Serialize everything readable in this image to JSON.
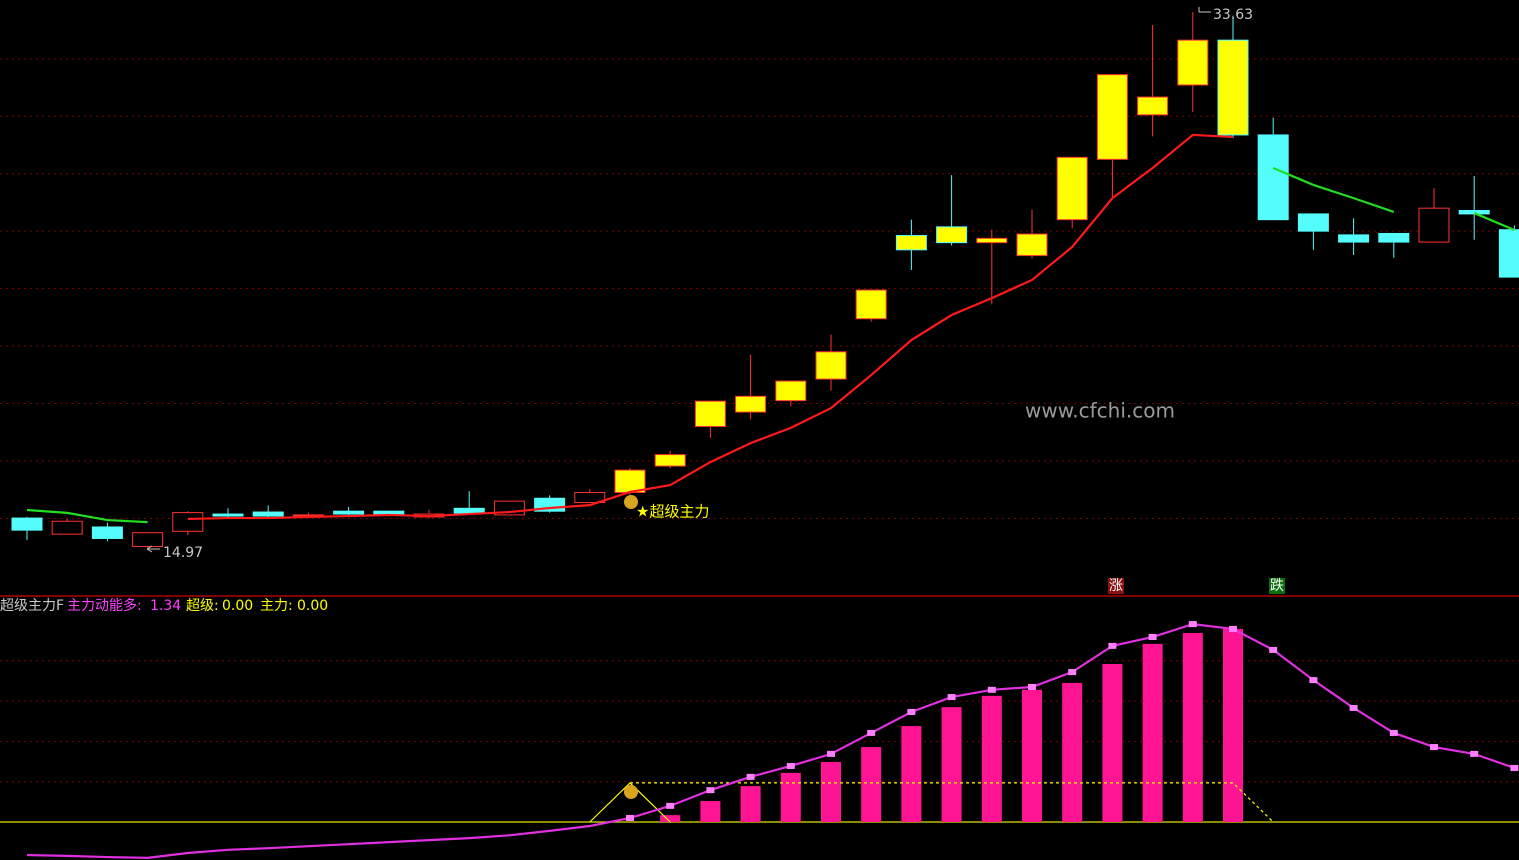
{
  "chart_data": [
    {
      "type": "candlestick",
      "ylim": [
        14,
        34
      ],
      "grid": true,
      "grid_lines": [
        16,
        18,
        20,
        22,
        24,
        26,
        28,
        30,
        32
      ],
      "up_color": "#ff3232",
      "down_color": "#54fcfc",
      "candles": {
        "open": [
          16.01,
          15.45,
          15.7,
          15.02,
          15.55,
          16.15,
          16.22,
          16.1,
          16.25,
          16.25,
          16.05,
          16.35,
          16.12,
          16.7,
          16.55,
          16.9,
          17.82,
          19.2,
          19.7,
          20.1,
          20.85,
          22.95,
          25.85,
          26.15,
          25.6,
          25.15,
          26.4,
          28.5,
          30.05,
          31.09,
          32.65,
          29.35,
          26.6,
          25.87,
          25.92,
          25.62,
          26.72,
          26.05
        ],
        "high": [
          16.05,
          15.98,
          15.85,
          15.5,
          16.25,
          16.35,
          16.45,
          16.2,
          16.4,
          16.25,
          16.3,
          16.95,
          16.6,
          16.8,
          17.02,
          17.75,
          18.35,
          20.1,
          21.7,
          20.78,
          22.4,
          23.95,
          26.4,
          27.95,
          26.05,
          26.75,
          28.57,
          31.45,
          33.18,
          33.63,
          33.5,
          29.95,
          26.6,
          26.45,
          25.92,
          27.5,
          27.92,
          26.2
        ],
        "low": [
          15.24,
          15.45,
          15.2,
          14.97,
          15.42,
          16.05,
          15.98,
          16.02,
          16.1,
          16.1,
          16.0,
          16.15,
          16.12,
          16.2,
          16.55,
          16.75,
          17.75,
          18.8,
          19.45,
          19.9,
          20.45,
          22.85,
          24.65,
          25.5,
          23.45,
          25.05,
          26.1,
          27.15,
          29.3,
          30.15,
          29.25,
          26.4,
          25.35,
          25.17,
          25.07,
          25.62,
          25.7,
          24.4
        ],
        "close": [
          15.59,
          15.9,
          15.3,
          15.5,
          16.2,
          16.08,
          16.08,
          16.12,
          16.15,
          16.15,
          16.15,
          16.18,
          16.6,
          16.25,
          16.9,
          17.68,
          18.22,
          20.08,
          20.25,
          20.78,
          21.8,
          23.95,
          25.35,
          25.6,
          25.75,
          25.9,
          28.57,
          31.45,
          30.67,
          32.65,
          29.35,
          26.4,
          26.0,
          25.62,
          25.62,
          26.8,
          26.6,
          24.4
        ],
        "fills": [
          "#54fcfc",
          "#000000",
          "#54fcfc",
          "#000000",
          "#000000",
          "#54fcfc",
          "#54fcfc",
          "#000000",
          "#54fcfc",
          "#54fcfc",
          "#000000",
          "#54fcfc",
          "#000000",
          "#54fcfc",
          "#000000",
          "#ffff00",
          "#ffff00",
          "#ffff00",
          "#ffff00",
          "#ffff00",
          "#ffff00",
          "#ffff00",
          "#ffff00",
          "#ffff00",
          "#ffff00",
          "#ffff00",
          "#ffff00",
          "#ffff00",
          "#ffff00",
          "#ffff00",
          "#ffff00",
          "#54fcfc",
          "#54fcfc",
          "#54fcfc",
          "#54fcfc",
          "#000000",
          "#54fcfc",
          "#54fcfc"
        ]
      },
      "lines": [
        {
          "color": "#ff1a1a",
          "values": [
            null,
            null,
            null,
            null,
            15.98,
            16.01,
            16.01,
            16.05,
            16.08,
            16.12,
            16.08,
            16.15,
            16.22,
            16.36,
            16.46,
            16.92,
            17.16,
            17.96,
            18.62,
            19.15,
            19.84,
            20.99,
            22.21,
            23.08,
            23.67,
            24.3,
            25.45,
            27.15,
            28.2,
            29.35,
            29.28,
            null,
            null,
            null,
            null,
            null,
            null,
            null
          ]
        },
        {
          "color": "#22dd22",
          "values": [
            16.29,
            16.19,
            15.94,
            15.87,
            null,
            null,
            null,
            null,
            null,
            null,
            null,
            null,
            null,
            null,
            null,
            null,
            null,
            null,
            null,
            null,
            null,
            null,
            null,
            null,
            null,
            null,
            null,
            null,
            null,
            null,
            null,
            28.2,
            27.61,
            27.15,
            26.67,
            null,
            26.63,
            26.04
          ]
        }
      ],
      "annotation": "★超级主力",
      "watermark": "www.cfchi.com",
      "signals": [
        "涨",
        "跌"
      ]
    },
    {
      "type": "indicator",
      "title": "超级主力F",
      "ylim": [
        -1,
        5.6
      ],
      "grid": true,
      "grid_lines": [
        1,
        2,
        3,
        4
      ],
      "baseline_color": "#e0e000",
      "legend": [
        {
          "name": "主力动能多:",
          "value": 1.34,
          "color": "#ff40ff"
        },
        {
          "name": "超级:",
          "value": 0,
          "value_label": "0.00",
          "color": "#ffff00"
        },
        {
          "name": "主力:",
          "value": 0,
          "value_label": "0.00",
          "color": "#ffff00"
        }
      ],
      "bars": {
        "color": "#ff1493",
        "values": [
          null,
          null,
          null,
          null,
          null,
          null,
          null,
          null,
          null,
          null,
          null,
          null,
          null,
          null,
          null,
          null,
          0.17,
          0.52,
          0.89,
          1.22,
          1.49,
          1.86,
          2.38,
          2.85,
          3.13,
          3.28,
          3.45,
          3.92,
          4.42,
          4.69,
          4.79,
          null,
          null,
          null,
          null,
          null,
          null,
          null
        ]
      },
      "line": {
        "color": "#e030e0",
        "marker_color": "#ff80ff",
        "values": [
          -0.82,
          -0.84,
          -0.87,
          -0.89,
          -0.77,
          -0.69,
          -0.65,
          -0.6,
          -0.55,
          -0.5,
          -0.45,
          -0.4,
          -0.33,
          -0.22,
          -0.1,
          0.1,
          0.4,
          0.79,
          1.12,
          1.39,
          1.69,
          2.21,
          2.73,
          3.1,
          3.28,
          3.35,
          3.72,
          4.37,
          4.59,
          4.91,
          4.79,
          4.27,
          3.52,
          2.83,
          2.21,
          1.86,
          1.69,
          1.34
        ]
      },
      "signal": {
        "color": "#ffff00",
        "values": [
          null,
          null,
          null,
          null,
          null,
          null,
          null,
          null,
          null,
          null,
          null,
          null,
          null,
          null,
          0,
          0.97,
          0,
          null,
          null,
          null,
          null,
          null,
          null,
          null,
          null,
          null,
          null,
          null,
          null,
          null,
          null,
          null,
          null,
          null,
          null,
          null,
          null,
          null
        ]
      },
      "signal_dashed": {
        "color": "#ffff00",
        "values": [
          null,
          null,
          null,
          null,
          null,
          null,
          null,
          null,
          null,
          null,
          null,
          null,
          null,
          null,
          null,
          0.97,
          0.97,
          0.97,
          0.97,
          0.97,
          0.97,
          0.97,
          0.97,
          0.97,
          0.97,
          0.97,
          0.97,
          0.97,
          0.97,
          0.97,
          0.97,
          0,
          null,
          null,
          null,
          null,
          null,
          null
        ]
      }
    }
  ]
}
